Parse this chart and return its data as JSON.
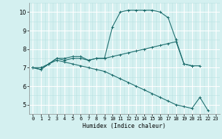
{
  "xlabel": "Humidex (Indice chaleur)",
  "bg_color": "#d4f0f0",
  "line_color": "#1a6b6b",
  "grid_major_color": "#ffffff",
  "grid_minor_color": "#b8e0e0",
  "ylim": [
    4.5,
    10.5
  ],
  "xlim": [
    -0.5,
    23.5
  ],
  "yticks": [
    5,
    6,
    7,
    8,
    9,
    10
  ],
  "xticks": [
    0,
    1,
    2,
    3,
    4,
    5,
    6,
    7,
    8,
    9,
    10,
    11,
    12,
    13,
    14,
    15,
    16,
    17,
    18,
    19,
    20,
    21,
    22,
    23
  ],
  "series": [
    {
      "x": [
        0,
        1,
        2,
        3,
        4,
        5,
        6,
        7,
        8,
        9,
        10,
        11,
        12,
        13,
        14,
        15,
        16,
        17,
        18
      ],
      "y": [
        7.0,
        6.9,
        7.2,
        7.5,
        7.5,
        7.6,
        7.6,
        7.4,
        7.5,
        7.5,
        9.2,
        10.0,
        10.1,
        10.1,
        10.1,
        10.1,
        10.0,
        9.7,
        8.5
      ]
    },
    {
      "x": [
        18,
        19,
        20,
        21
      ],
      "y": [
        8.5,
        7.2,
        7.1,
        7.1
      ]
    },
    {
      "x": [
        0,
        1,
        2,
        3,
        4,
        5,
        6,
        7,
        8,
        9,
        10,
        11,
        12,
        13,
        14,
        15,
        16,
        17,
        18,
        19,
        20
      ],
      "y": [
        7.0,
        7.0,
        7.2,
        7.5,
        7.4,
        7.5,
        7.5,
        7.4,
        7.5,
        7.5,
        7.6,
        7.7,
        7.8,
        7.9,
        8.0,
        8.1,
        8.2,
        8.3,
        8.4,
        7.2,
        7.1
      ]
    },
    {
      "x": [
        0,
        1,
        2,
        3,
        4,
        5,
        6,
        7,
        8,
        9,
        10,
        11,
        12,
        13,
        14,
        15,
        16,
        17,
        18,
        19,
        20,
        21,
        22
      ],
      "y": [
        7.0,
        6.9,
        7.2,
        7.4,
        7.3,
        7.2,
        7.1,
        7.0,
        6.9,
        6.8,
        6.6,
        6.4,
        6.2,
        6.0,
        5.8,
        5.6,
        5.4,
        5.2,
        5.0,
        4.9,
        4.8,
        5.4,
        4.7
      ]
    }
  ]
}
